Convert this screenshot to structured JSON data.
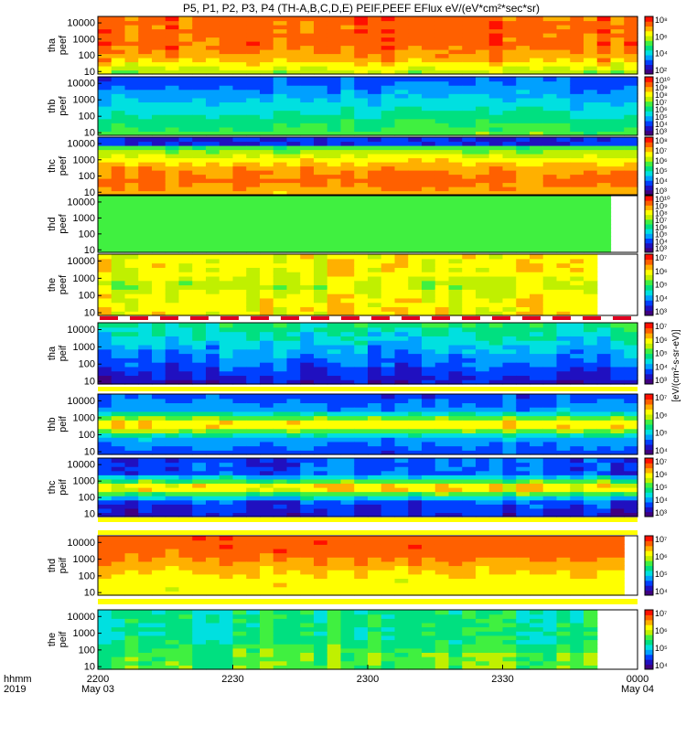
{
  "title": "P5, P1, P2, P3, P4 (TH-A,B,C,D,E) PEIF,PEEF EFlux eV/(eV*cm²*sec*sr)",
  "x_axis": {
    "corner_label_1": "hhmm",
    "corner_label_2": "2019",
    "ticks": [
      {
        "time": "2200",
        "date": "May 03"
      },
      {
        "time": "2230",
        "date": ""
      },
      {
        "time": "2300",
        "date": ""
      },
      {
        "time": "2330",
        "date": ""
      },
      {
        "time": "0000",
        "date": "May 04"
      }
    ]
  },
  "colorbar_unit_label": "[eV/(cm²-s-sr-eV)]",
  "colors": {
    "palette": [
      "#400080",
      "#2010c0",
      "#0040ff",
      "#00a0ff",
      "#00e0e0",
      "#00e080",
      "#40f040",
      "#c0f000",
      "#ffff00",
      "#ffb000",
      "#ff6000",
      "#ff1000"
    ],
    "separator_red": "#e00020",
    "separator_yellow": "#ffff00"
  },
  "chart_data": {
    "type": "heatmap",
    "x_range": [
      "2200",
      "0000"
    ],
    "y_scale": "log",
    "y_range_eV": [
      7,
      25000
    ],
    "panels": [
      {
        "probe": "tha",
        "product": "peef",
        "label": "tha\npeef",
        "y_ticks": [
          "10",
          "100",
          "1000",
          "10000"
        ],
        "cbar_ticks": [
          "10²",
          "10⁴",
          "10⁶",
          "10⁸"
        ],
        "cbar_exp": [
          2,
          4,
          6,
          8
        ]
      },
      {
        "probe": "thb",
        "product": "peef",
        "label": "thb\npeef",
        "y_ticks": [
          "10",
          "100",
          "1000",
          "10000"
        ],
        "cbar_ticks": [
          "10³",
          "10⁴",
          "10⁵",
          "10⁶",
          "10⁷",
          "10⁸",
          "10⁹",
          "10¹⁰"
        ],
        "cbar_exp": [
          3,
          4,
          5,
          6,
          7,
          8,
          9,
          10
        ]
      },
      {
        "probe": "thc",
        "product": "peef",
        "label": "thc\npeef",
        "y_ticks": [
          "10",
          "100",
          "1000",
          "10000"
        ],
        "cbar_ticks": [
          "10³",
          "10⁴",
          "10⁵",
          "10⁶",
          "10⁷",
          "10⁸"
        ],
        "cbar_exp": [
          3,
          4,
          5,
          6,
          7,
          8
        ]
      },
      {
        "probe": "thd",
        "product": "peef",
        "label": "thd\npeef",
        "y_ticks": [
          "10",
          "100",
          "1000",
          "10000"
        ],
        "cbar_ticks": [
          "10³",
          "10⁴",
          "10⁵",
          "10⁶",
          "10⁷",
          "10⁸",
          "10⁹",
          "10¹⁰"
        ],
        "cbar_exp": [
          3,
          4,
          5,
          6,
          7,
          8,
          9,
          10
        ]
      },
      {
        "probe": "the",
        "product": "peef",
        "label": "the\npeef",
        "y_ticks": [
          "10",
          "100",
          "1000",
          "10000"
        ],
        "cbar_ticks": [
          "10³",
          "10⁴",
          "10⁵",
          "10⁶",
          "10⁷"
        ],
        "cbar_exp": [
          3,
          4,
          5,
          6,
          7
        ]
      },
      {
        "probe": "tha",
        "product": "peif",
        "label": "tha\npeif",
        "y_ticks": [
          "10",
          "100",
          "1000",
          "10000"
        ],
        "cbar_ticks": [
          "10³",
          "10⁴",
          "10⁵",
          "10⁶",
          "10⁷"
        ],
        "cbar_exp": [
          3,
          4,
          5,
          6,
          7
        ]
      },
      {
        "probe": "thb",
        "product": "peif",
        "label": "thb\npeif",
        "y_ticks": [
          "10",
          "100",
          "1000",
          "10000"
        ],
        "cbar_ticks": [
          "10⁴",
          "10⁵",
          "10⁶",
          "10⁷"
        ],
        "cbar_exp": [
          4,
          5,
          6,
          7
        ]
      },
      {
        "probe": "thc",
        "product": "peif",
        "label": "thc\npeif",
        "y_ticks": [
          "10",
          "100",
          "1000",
          "10000"
        ],
        "cbar_ticks": [
          "10³",
          "10⁴",
          "10⁵",
          "10⁶",
          "10⁷"
        ],
        "cbar_exp": [
          3,
          4,
          5,
          6,
          7
        ]
      },
      {
        "probe": "thd",
        "product": "peif",
        "label": "thd\npeif",
        "y_ticks": [
          "10",
          "100",
          "1000",
          "10000"
        ],
        "cbar_ticks": [
          "10⁴",
          "10⁵",
          "10⁶",
          "10⁷"
        ],
        "cbar_exp": [
          4,
          5,
          6,
          7
        ]
      },
      {
        "probe": "the",
        "product": "peif",
        "label": "the\npeif",
        "y_ticks": [
          "10",
          "100",
          "1000",
          "10000"
        ],
        "cbar_ticks": [
          "10⁴",
          "10⁵",
          "10⁶",
          "10⁷"
        ],
        "cbar_exp": [
          4,
          5,
          6,
          7
        ]
      }
    ]
  }
}
